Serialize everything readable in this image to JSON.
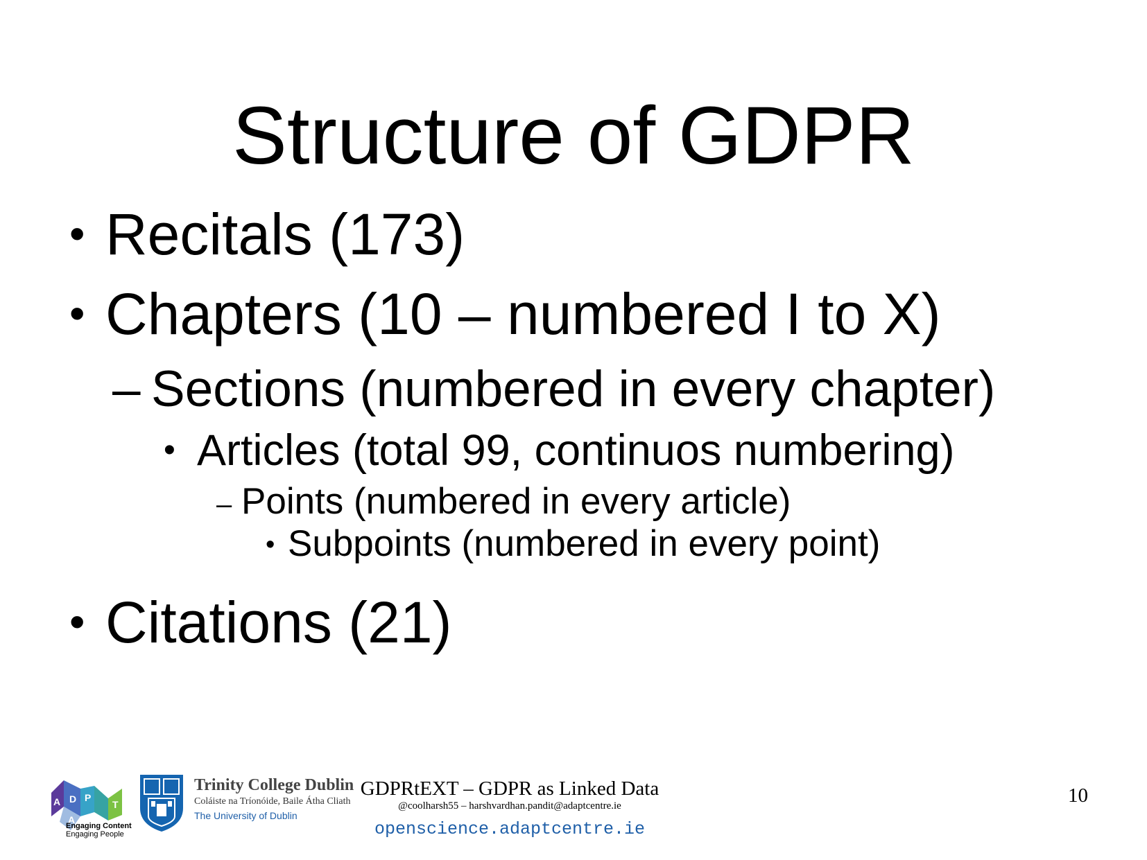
{
  "slide": {
    "title": "Structure of GDPR",
    "bullets": {
      "recitals": "Recitals (173)",
      "chapters": "Chapters (10 – numbered I to X)",
      "sections": "Sections (numbered in every chapter)",
      "articles": "Articles (total 99, continuos numbering)",
      "points": "Points (numbered in every article)",
      "subpoints": "Subpoints (numbered in every point)",
      "citations": "Citations (21)"
    },
    "bullet_glyphs": {
      "round": "•",
      "dash": "–"
    }
  },
  "footer": {
    "title": "GDPRtEXT – GDPR as Linked Data",
    "contact": "@coolharsh55 –  harshvardhan.pandit@adaptcentre.ie",
    "url": "openscience.adaptcentre.ie",
    "page_number": "10"
  },
  "logos": {
    "adapt": {
      "letters": [
        "A",
        "D",
        "A",
        "P",
        "T"
      ],
      "tagline_line1": "Engaging Content",
      "tagline_line2": "Engaging People"
    },
    "tcd": {
      "name": "Trinity College Dublin",
      "irish_name": "Coláiste na Tríonóide, Baile Átha Cliath",
      "university": "The University of Dublin"
    }
  },
  "colors": {
    "url_blue": "#1f5fa8",
    "tcd_blue": "#1565b0",
    "adapt_purple": "#5b3a9b",
    "adapt_teal": "#37a3a3",
    "adapt_green": "#7cc243"
  }
}
